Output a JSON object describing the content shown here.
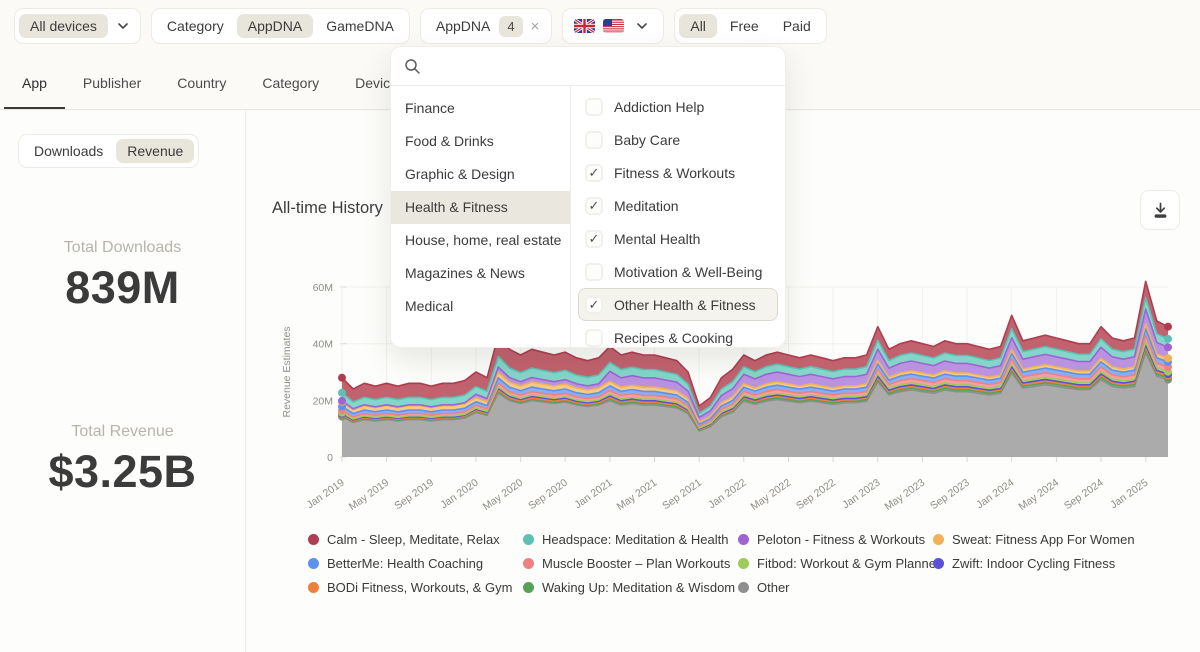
{
  "topbar": {
    "devices": {
      "selected": "All devices"
    },
    "category_toggle": {
      "label": "Category",
      "options": [
        "AppDNA",
        "GameDNA"
      ],
      "selected": "AppDNA"
    },
    "filter_chip": {
      "label": "AppDNA",
      "count": "4",
      "close": "×"
    },
    "flags": [
      "uk-flag",
      "us-flag"
    ],
    "pricing_toggle": {
      "options": [
        "All",
        "Free",
        "Paid"
      ],
      "selected": "All"
    }
  },
  "tabs": {
    "items": [
      "App",
      "Publisher",
      "Country",
      "Category",
      "Device"
    ],
    "active": "App"
  },
  "metric_toggle": {
    "options": [
      "Downloads",
      "Revenue"
    ],
    "selected": "Revenue"
  },
  "stats": {
    "downloads_label": "Total Downloads",
    "downloads_value": "839M",
    "revenue_label": "Total Revenue",
    "revenue_value": "$3.25B"
  },
  "chart_header": {
    "title": "All-time History",
    "download_icon": "download-icon"
  },
  "dropdown": {
    "search_value": "",
    "categories": [
      "Finance",
      "Food & Drinks",
      "Graphic & Design",
      "Health & Fitness",
      "House, home, real estate",
      "Magazines & News",
      "Medical"
    ],
    "selected_category": "Health & Fitness",
    "subcategories": [
      {
        "label": "Addiction Help",
        "checked": false,
        "highlighted": false
      },
      {
        "label": "Baby Care",
        "checked": false,
        "highlighted": false
      },
      {
        "label": "Fitness & Workouts",
        "checked": true,
        "highlighted": false
      },
      {
        "label": "Meditation",
        "checked": true,
        "highlighted": false
      },
      {
        "label": "Mental Health",
        "checked": true,
        "highlighted": false
      },
      {
        "label": "Motivation & Well-Being",
        "checked": false,
        "highlighted": false
      },
      {
        "label": "Other Health & Fitness",
        "checked": true,
        "highlighted": true
      },
      {
        "label": "Recipes & Cooking",
        "checked": false,
        "highlighted": false
      }
    ]
  },
  "chart_data": {
    "type": "area",
    "stacked": true,
    "title": "All-time History",
    "ylabel": "Revenue Estimates",
    "ylim_musd": [
      0,
      60
    ],
    "y_ticks_musd": [
      0,
      20,
      40,
      60
    ],
    "x_tick_labels": [
      "Jan 2019",
      "May 2019",
      "Sep 2019",
      "Jan 2020",
      "May 2020",
      "Sep 2020",
      "Jan 2021",
      "May 2021",
      "Sep 2021",
      "Jan 2022",
      "May 2022",
      "Sep 2022",
      "Jan 2023",
      "May 2023",
      "Sep 2023",
      "Jan 2024",
      "May 2024",
      "Sep 2024",
      "Jan 2025"
    ],
    "x_monthly_start": "Jan 2019",
    "x_monthly_end": "Mar 2025",
    "totals_by_month_musd": [
      28,
      24,
      26,
      25,
      26,
      25,
      26,
      26,
      25,
      26,
      26,
      27,
      30,
      28,
      43,
      38,
      36,
      38,
      37,
      36,
      37,
      35,
      34,
      35,
      39,
      36,
      37,
      36,
      36,
      35,
      34,
      30,
      18,
      21,
      28,
      31,
      36,
      34,
      36,
      37,
      36,
      35,
      36,
      35,
      34,
      35,
      35,
      36,
      46,
      38,
      40,
      41,
      40,
      39,
      41,
      40,
      40,
      39,
      38,
      39,
      50,
      41,
      42,
      43,
      42,
      41,
      40,
      40,
      46,
      42,
      41,
      42,
      62,
      48,
      46
    ],
    "share_years": [
      2019,
      2020,
      2021,
      2022,
      2023,
      2024,
      2025
    ],
    "stack_order_bottom_to_top": [
      "Other",
      "Waking Up: Meditation & Wisdom",
      "BODi Fitness, Workouts, & Gym",
      "Zwift: Indoor Cycling Fitness",
      "Fitbod: Workout & Gym Planner",
      "Muscle Booster – Plan Workouts",
      "BetterMe: Health Coaching",
      "Sweat: Fitness App For Women",
      "Peloton - Fitness & Workouts",
      "Headspace: Meditation & Health",
      "Calm - Sleep, Meditate, Relax"
    ],
    "legend_order": [
      "Calm - Sleep, Meditate, Relax",
      "Headspace: Meditation & Health",
      "Peloton - Fitness & Workouts",
      "Sweat: Fitness App For Women",
      "BetterMe: Health Coaching",
      "Muscle Booster – Plan Workouts",
      "Fitbod: Workout & Gym Planner",
      "Zwift: Indoor Cycling Fitness",
      "BODi Fitness, Workouts, & Gym",
      "Waking Up: Meditation & Wisdom",
      "Other"
    ],
    "series": [
      {
        "name": "Calm - Sleep, Meditate, Relax",
        "color": "#ae3d50",
        "fill": "#c2626f",
        "share_of_total_by_year": [
          0.18,
          0.165,
          0.14,
          0.115,
          0.105,
          0.095,
          0.095
        ]
      },
      {
        "name": "Headspace: Meditation & Health",
        "color": "#5cc0b2",
        "fill": "#85d6ca",
        "share_of_total_by_year": [
          0.095,
          0.085,
          0.08,
          0.075,
          0.07,
          0.065,
          0.065
        ]
      },
      {
        "name": "Peloton - Fitness & Workouts",
        "color": "#9d64d2",
        "fill": "#ba93e0",
        "share_of_total_by_year": [
          0.012,
          0.04,
          0.09,
          0.095,
          0.085,
          0.085,
          0.085
        ]
      },
      {
        "name": "Sweat: Fitness App For Women",
        "color": "#f0b258",
        "fill": "#f6ca84",
        "share_of_total_by_year": [
          0.055,
          0.045,
          0.04,
          0.032,
          0.028,
          0.028,
          0.028
        ]
      },
      {
        "name": "BetterMe: Health Coaching",
        "color": "#5e90ef",
        "fill": "#89aef2",
        "share_of_total_by_year": [
          0.045,
          0.04,
          0.04,
          0.042,
          0.04,
          0.04,
          0.04
        ]
      },
      {
        "name": "Muscle Booster – Plan Workouts",
        "color": "#ee8181",
        "fill": "#f4a0a0",
        "share_of_total_by_year": [
          0.03,
          0.03,
          0.035,
          0.036,
          0.036,
          0.036,
          0.036
        ]
      },
      {
        "name": "Fitbod: Workout & Gym Planner",
        "color": "#9ecb5c",
        "fill": "#bcdb86",
        "share_of_total_by_year": [
          0.012,
          0.012,
          0.015,
          0.016,
          0.018,
          0.018,
          0.018
        ]
      },
      {
        "name": "Zwift: Indoor Cycling Fitness",
        "color": "#5b50d6",
        "fill": "#8178e2",
        "share_of_total_by_year": [
          0.012,
          0.015,
          0.015,
          0.014,
          0.014,
          0.014,
          0.014
        ]
      },
      {
        "name": "BODi Fitness, Workouts, & Gym",
        "color": "#ee7f3c",
        "fill": "#f29a62",
        "share_of_total_by_year": [
          0.012,
          0.01,
          0.012,
          0.014,
          0.014,
          0.014,
          0.014
        ]
      },
      {
        "name": "Waking Up: Meditation & Wisdom",
        "color": "#57a057",
        "fill": "#83bd83",
        "share_of_total_by_year": [
          0.012,
          0.012,
          0.015,
          0.016,
          0.016,
          0.016,
          0.016
        ]
      },
      {
        "name": "Other",
        "color": "#8f8f8f",
        "fill": "#ababab",
        "share_of_total_by_year": [
          0.48,
          0.5,
          0.5,
          0.55,
          0.58,
          0.6,
          0.6
        ]
      }
    ]
  }
}
